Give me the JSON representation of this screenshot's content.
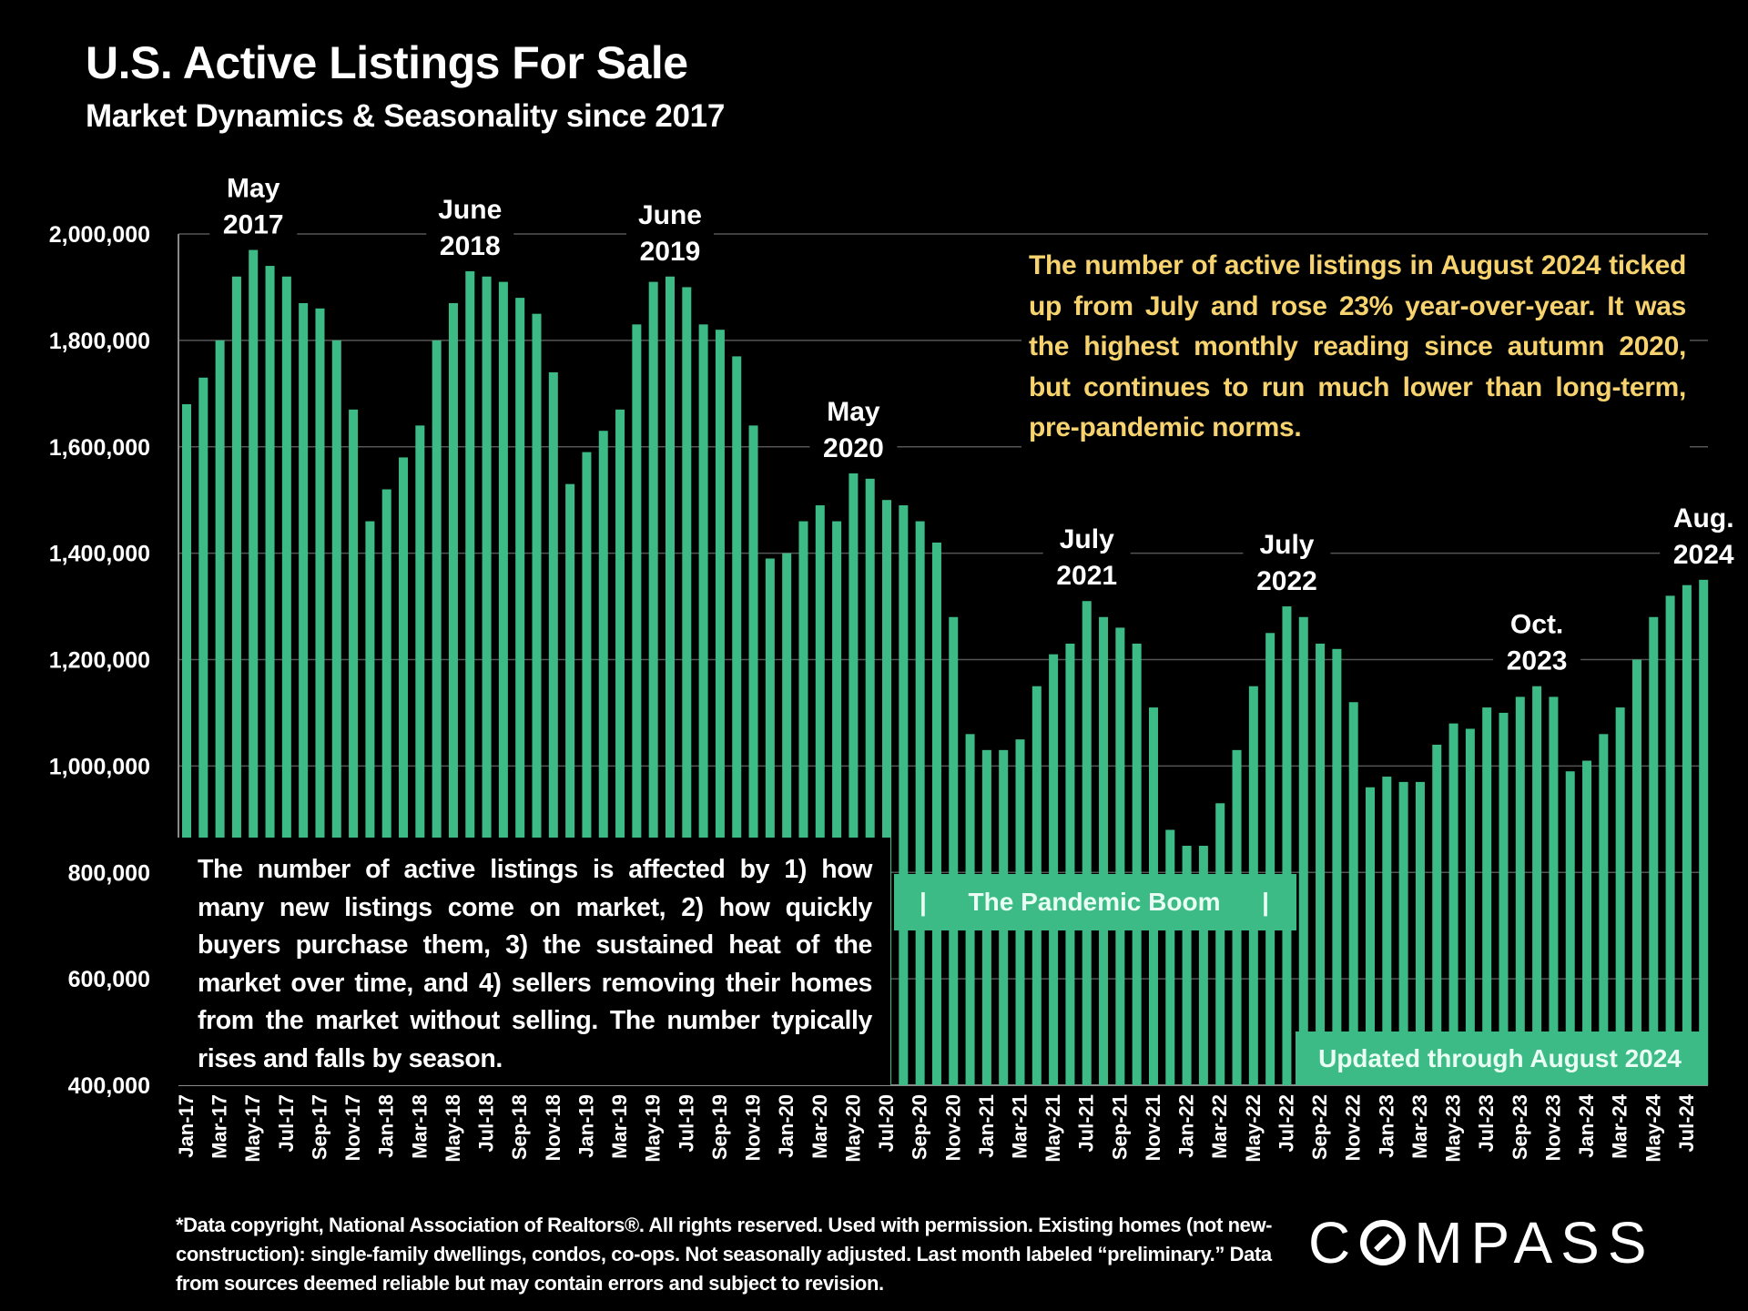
{
  "header": {
    "title": "U.S. Active Listings For Sale",
    "subtitle": "Market Dynamics & Seasonality since 2017"
  },
  "chart_data": {
    "type": "bar",
    "title": "U.S. Active Listings For Sale",
    "subtitle": "Market Dynamics & Seasonality since 2017",
    "xlabel": "",
    "ylabel": "",
    "ylim": [
      400000,
      2000000
    ],
    "yticks": [
      400000,
      600000,
      800000,
      1000000,
      1200000,
      1400000,
      1600000,
      1800000,
      2000000
    ],
    "ytick_labels": [
      "400,000",
      "600,000",
      "800,000",
      "1,000,000",
      "1,200,000",
      "1,400,000",
      "1,600,000",
      "1,800,000",
      "2,000,000"
    ],
    "grid": true,
    "bar_color": "#3dbb86",
    "categories": [
      "Jan-17",
      "Feb-17",
      "Mar-17",
      "Apr-17",
      "May-17",
      "Jun-17",
      "Jul-17",
      "Aug-17",
      "Sep-17",
      "Oct-17",
      "Nov-17",
      "Dec-17",
      "Jan-18",
      "Feb-18",
      "Mar-18",
      "Apr-18",
      "May-18",
      "Jun-18",
      "Jul-18",
      "Aug-18",
      "Sep-18",
      "Oct-18",
      "Nov-18",
      "Dec-18",
      "Jan-19",
      "Feb-19",
      "Mar-19",
      "Apr-19",
      "May-19",
      "Jun-19",
      "Jul-19",
      "Aug-19",
      "Sep-19",
      "Oct-19",
      "Nov-19",
      "Dec-19",
      "Jan-20",
      "Feb-20",
      "Mar-20",
      "Apr-20",
      "May-20",
      "Jun-20",
      "Jul-20",
      "Aug-20",
      "Sep-20",
      "Oct-20",
      "Nov-20",
      "Dec-20",
      "Jan-21",
      "Feb-21",
      "Mar-21",
      "Apr-21",
      "May-21",
      "Jun-21",
      "Jul-21",
      "Aug-21",
      "Sep-21",
      "Oct-21",
      "Nov-21",
      "Dec-21",
      "Jan-22",
      "Feb-22",
      "Mar-22",
      "Apr-22",
      "May-22",
      "Jun-22",
      "Jul-22",
      "Aug-22",
      "Sep-22",
      "Oct-22",
      "Nov-22",
      "Dec-22",
      "Jan-23",
      "Feb-23",
      "Mar-23",
      "Apr-23",
      "May-23",
      "Jun-23",
      "Jul-23",
      "Aug-23",
      "Sep-23",
      "Oct-23",
      "Nov-23",
      "Dec-23",
      "Jan-24",
      "Feb-24",
      "Mar-24",
      "Apr-24",
      "May-24",
      "Jun-24",
      "Jul-24",
      "Aug-24"
    ],
    "values": [
      1680000,
      1730000,
      1800000,
      1920000,
      1970000,
      1940000,
      1920000,
      1870000,
      1860000,
      1800000,
      1670000,
      1460000,
      1520000,
      1580000,
      1640000,
      1800000,
      1870000,
      1930000,
      1920000,
      1910000,
      1880000,
      1850000,
      1740000,
      1530000,
      1590000,
      1630000,
      1670000,
      1830000,
      1910000,
      1920000,
      1900000,
      1830000,
      1820000,
      1770000,
      1640000,
      1390000,
      1400000,
      1460000,
      1490000,
      1460000,
      1550000,
      1540000,
      1500000,
      1490000,
      1460000,
      1420000,
      1280000,
      1060000,
      1030000,
      1030000,
      1050000,
      1150000,
      1210000,
      1230000,
      1310000,
      1280000,
      1260000,
      1230000,
      1110000,
      880000,
      850000,
      850000,
      930000,
      1030000,
      1150000,
      1250000,
      1300000,
      1280000,
      1230000,
      1220000,
      1120000,
      960000,
      980000,
      970000,
      970000,
      1040000,
      1080000,
      1070000,
      1110000,
      1100000,
      1130000,
      1150000,
      1130000,
      990000,
      1010000,
      1060000,
      1110000,
      1200000,
      1280000,
      1320000,
      1340000,
      1350000
    ],
    "xtick_labels": [
      "Jan-17",
      "Mar-17",
      "May-17",
      "Jul-17",
      "Sep-17",
      "Nov-17",
      "Jan-18",
      "Mar-18",
      "May-18",
      "Jul-18",
      "Sep-18",
      "Nov-18",
      "Jan-19",
      "Mar-19",
      "May-19",
      "Jul-19",
      "Sep-19",
      "Nov-19",
      "Jan-20",
      "Mar-20",
      "May-20",
      "Jul-20",
      "Sep-20",
      "Nov-20",
      "Jan-21",
      "Mar-21",
      "May-21",
      "Jul-21",
      "Sep-21",
      "Nov-21",
      "Jan-22",
      "Mar-22",
      "May-22",
      "Jul-22",
      "Sep-22",
      "Nov-22",
      "Jan-23",
      "Mar-23",
      "May-23",
      "Jul-23",
      "Sep-23",
      "Nov-23",
      "Jan-24",
      "Mar-24",
      "May-24",
      "Jul-24"
    ],
    "annotations": [
      {
        "month": "May-17",
        "lines": [
          "May",
          "2017"
        ]
      },
      {
        "month": "Jun-18",
        "lines": [
          "June",
          "2018"
        ]
      },
      {
        "month": "Jun-19",
        "lines": [
          "June",
          "2019"
        ]
      },
      {
        "month": "May-20",
        "lines": [
          "May",
          "2020"
        ]
      },
      {
        "month": "Jul-21",
        "lines": [
          "July",
          "2021"
        ]
      },
      {
        "month": "Jul-22",
        "lines": [
          "July",
          "2022"
        ]
      },
      {
        "month": "Oct-23",
        "lines": [
          "Oct.",
          "2023"
        ]
      },
      {
        "month": "Aug-24",
        "lines": [
          "Aug.",
          "2024"
        ]
      }
    ]
  },
  "notes": {
    "highlight": "The number of active listings in August 2024 ticked up from July and rose 23% year-over-year. It was the highest monthly reading since autumn 2020, but continues to run much lower than long-term, pre-pandemic norms.",
    "explanation": "The number of active listings is affected by 1) how many new listings come on market, 2) how quickly buyers purchase them, 3) the sustained heat of the market over time, and 4) sellers removing their homes from the market without selling. The number typically rises and falls by season.",
    "pandemic_label": "The Pandemic Boom",
    "pandemic_bracket_left": "|",
    "pandemic_bracket_right": "|",
    "updated_label": "Updated through August 2024"
  },
  "footer": {
    "footnote": "*Data copyright, National Association of Realtors®. All rights reserved. Used with permission. Existing homes (not new-construction): single-family dwellings, condos, co-ops. Not seasonally adjusted. Last month labeled “preliminary.” Data from sources deemed reliable but may contain errors and subject to revision.",
    "logo_pre": "C",
    "logo_post": "MPASS"
  }
}
